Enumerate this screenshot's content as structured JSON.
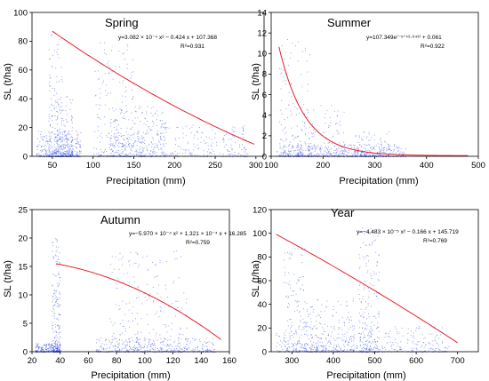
{
  "colors": {
    "scatter": "#3a50f0",
    "fit": "#e8202a",
    "axis": "#000000"
  },
  "chart_data": [
    {
      "type": "scatter",
      "title": "Spring",
      "xlabel": "Precipitation (mm)",
      "ylabel": "SL (t/ha)",
      "xlim": [
        25,
        310
      ],
      "ylim": [
        0,
        100
      ],
      "xticks": [
        50,
        100,
        150,
        200,
        250,
        300
      ],
      "yticks": [
        0,
        20,
        40,
        60,
        80,
        100
      ],
      "equation": "y=3.082 × 10⁻⁴ x² − 0.424 x + 107.368",
      "r2": "R²=0.931",
      "fit": {
        "model": "quadratic",
        "coef": [
          0.0003082,
          -0.424,
          107.368
        ],
        "x_range": [
          50,
          298
        ]
      },
      "grid": false,
      "clusters": [
        {
          "x": [
            30,
            85
          ],
          "y_max": 18,
          "weight": 5
        },
        {
          "x": [
            45,
            62
          ],
          "y_max": 90,
          "weight": 2
        },
        {
          "x": [
            55,
            75
          ],
          "y_max": 45,
          "weight": 2
        },
        {
          "x": [
            100,
            150
          ],
          "y_max": 80,
          "weight": 3
        },
        {
          "x": [
            120,
            190
          ],
          "y_max": 35,
          "weight": 4
        },
        {
          "x": [
            150,
            290
          ],
          "y_max": 22,
          "weight": 4
        }
      ]
    },
    {
      "type": "scatter",
      "title": "Summer",
      "xlabel": "Precipitation (mm)",
      "ylabel": "SL (t/ha)",
      "xlim": [
        100,
        500
      ],
      "ylim": [
        0,
        14
      ],
      "xticks": [
        100,
        200,
        300,
        400,
        500
      ],
      "yticks": [
        0,
        2,
        4,
        6,
        8,
        10,
        12,
        14
      ],
      "equation": "y=107.349e⁽⁻ˣᐟ⁴⁹·⁶⁴³⁾ + 0.061",
      "r2": "R²=0.922",
      "fit": {
        "model": "exponential",
        "a": 107.349,
        "t": 49.643,
        "c": 0.061,
        "x_range": [
          115,
          480
        ]
      },
      "grid": false,
      "clusters": [
        {
          "x": [
            110,
            360
          ],
          "y_max": 1.2,
          "weight": 6
        },
        {
          "x": [
            115,
            175
          ],
          "y_max": 11.5,
          "weight": 2
        },
        {
          "x": [
            150,
            240
          ],
          "y_max": 5,
          "weight": 2
        },
        {
          "x": [
            260,
            330
          ],
          "y_max": 2.5,
          "weight": 2
        }
      ]
    },
    {
      "type": "scatter",
      "title": "Autumn",
      "xlabel": "Precipitation (mm)",
      "ylabel": "SL (t/ha)",
      "xlim": [
        20,
        160
      ],
      "ylim": [
        0,
        25
      ],
      "xticks": [
        20,
        40,
        60,
        80,
        100,
        120,
        140,
        160
      ],
      "yticks": [
        0,
        5,
        10,
        15,
        20,
        25
      ],
      "equation": "y=−5.970 × 10⁻⁴ x² + 1.321 × 10⁻⁴ x + 16.285",
      "r2": "R²=0.759",
      "fit": {
        "model": "quadratic",
        "coef": [
          -0.000597,
          0.0001321,
          16.285
        ],
        "x_range": [
          37,
          154
        ]
      },
      "grid": false,
      "clusters": [
        {
          "x": [
            22,
            40
          ],
          "y_max": 1.5,
          "weight": 3
        },
        {
          "x": [
            34,
            40
          ],
          "y_max": 20,
          "weight": 3
        },
        {
          "x": [
            65,
            150
          ],
          "y_max": 2.5,
          "weight": 5
        },
        {
          "x": [
            75,
            130
          ],
          "y_max": 18,
          "weight": 4
        }
      ]
    },
    {
      "type": "scatter",
      "title": "Year",
      "xlabel": "Precipitation (mm)",
      "ylabel": "SL (t/ha)",
      "xlim": [
        250,
        750
      ],
      "ylim": [
        0,
        120
      ],
      "xticks": [
        300,
        400,
        500,
        600,
        700
      ],
      "yticks": [
        0,
        20,
        40,
        60,
        80,
        100,
        120
      ],
      "equation": "y=−4.483 × 10⁻⁵ x² − 0.166 x + 145.719",
      "r2": "R²=0.769",
      "fit": {
        "model": "quadratic",
        "coef": [
          -4.483e-05,
          -0.166,
          145.719
        ],
        "x_range": [
          262,
          700
        ]
      },
      "grid": false,
      "clusters": [
        {
          "x": [
            260,
            680
          ],
          "y_max": 22,
          "weight": 6
        },
        {
          "x": [
            280,
            330
          ],
          "y_max": 90,
          "weight": 2
        },
        {
          "x": [
            460,
            510
          ],
          "y_max": 105,
          "weight": 3
        },
        {
          "x": [
            330,
            450
          ],
          "y_max": 45,
          "weight": 3
        }
      ]
    }
  ]
}
